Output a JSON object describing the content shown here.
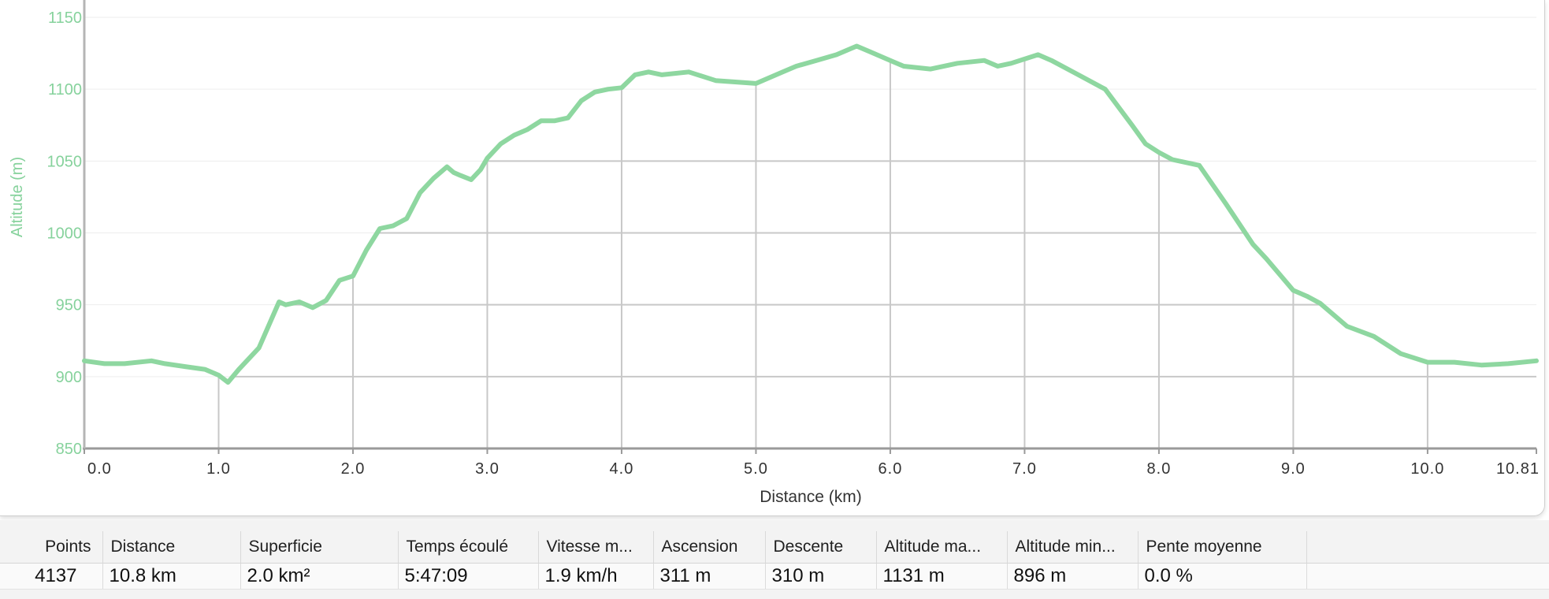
{
  "colors": {
    "profile_line": "#8ed7a0",
    "axis_y_text": "#86d29c",
    "axis_x_text": "#333333",
    "grid": "#c8c8c8",
    "grid_light": "#ededed"
  },
  "chart_data": {
    "type": "area",
    "xlabel": "Distance (km)",
    "ylabel": "Altitude (m)",
    "xlim": [
      0,
      10.81
    ],
    "ylim": [
      850,
      1150
    ],
    "x_ticks": [
      0.0,
      1.0,
      2.0,
      3.0,
      4.0,
      5.0,
      6.0,
      7.0,
      8.0,
      9.0,
      10.0,
      10.81
    ],
    "x_tick_labels": [
      "0.0",
      "1.0",
      "2.0",
      "3.0",
      "4.0",
      "5.0",
      "6.0",
      "7.0",
      "8.0",
      "9.0",
      "10.0",
      "10.81"
    ],
    "y_ticks": [
      850,
      900,
      950,
      1000,
      1050,
      1100,
      1150
    ],
    "y_tick_labels": [
      "850",
      "900",
      "950",
      "1000",
      "1050",
      "1100",
      "1150"
    ],
    "grid": true,
    "series": [
      {
        "x": [
          0.0,
          0.15,
          0.3,
          0.5,
          0.6,
          0.75,
          0.9,
          1.0,
          1.07,
          1.15,
          1.3,
          1.45,
          1.5,
          1.6,
          1.7,
          1.8,
          1.9,
          2.0,
          2.1,
          2.2,
          2.3,
          2.4,
          2.5,
          2.6,
          2.7,
          2.75,
          2.8,
          2.88,
          2.95,
          3.0,
          3.1,
          3.2,
          3.3,
          3.4,
          3.5,
          3.6,
          3.7,
          3.8,
          3.9,
          4.0,
          4.1,
          4.2,
          4.3,
          4.5,
          4.7,
          5.0,
          5.2,
          5.3,
          5.45,
          5.6,
          5.75,
          5.85,
          6.0,
          6.1,
          6.3,
          6.5,
          6.7,
          6.8,
          6.9,
          7.1,
          7.2,
          7.4,
          7.6,
          7.8,
          7.9,
          8.0,
          8.1,
          8.3,
          8.5,
          8.7,
          8.8,
          9.0,
          9.1,
          9.2,
          9.4,
          9.6,
          9.8,
          10.0,
          10.2,
          10.4,
          10.6,
          10.81
        ],
        "y": [
          911,
          909,
          909,
          911,
          909,
          907,
          905,
          901,
          896,
          905,
          920,
          952,
          950,
          952,
          948,
          953,
          967,
          970,
          988,
          1003,
          1005,
          1010,
          1028,
          1038,
          1046,
          1042,
          1040,
          1037,
          1044,
          1052,
          1062,
          1068,
          1072,
          1078,
          1078,
          1080,
          1092,
          1098,
          1100,
          1101,
          1110,
          1112,
          1110,
          1112,
          1106,
          1104,
          1112,
          1116,
          1120,
          1124,
          1130,
          1126,
          1120,
          1116,
          1114,
          1118,
          1120,
          1116,
          1118,
          1124,
          1120,
          1110,
          1100,
          1075,
          1062,
          1056,
          1051,
          1047,
          1020,
          992,
          982,
          960,
          956,
          951,
          935,
          928,
          916,
          910,
          910,
          908,
          909,
          911
        ]
      }
    ]
  },
  "stats": {
    "headers": [
      "Points",
      "Distance",
      "Superficie",
      "Temps écoulé",
      "Vitesse m...",
      "Ascension",
      "Descente",
      "Altitude ma...",
      "Altitude min...",
      "Pente moyenne"
    ],
    "values": [
      "4137",
      "10.8 km",
      "2.0 km²",
      "5:47:09",
      "1.9 km/h",
      "311 m",
      "310 m",
      "1131 m",
      "896 m",
      "0.0 %"
    ]
  }
}
